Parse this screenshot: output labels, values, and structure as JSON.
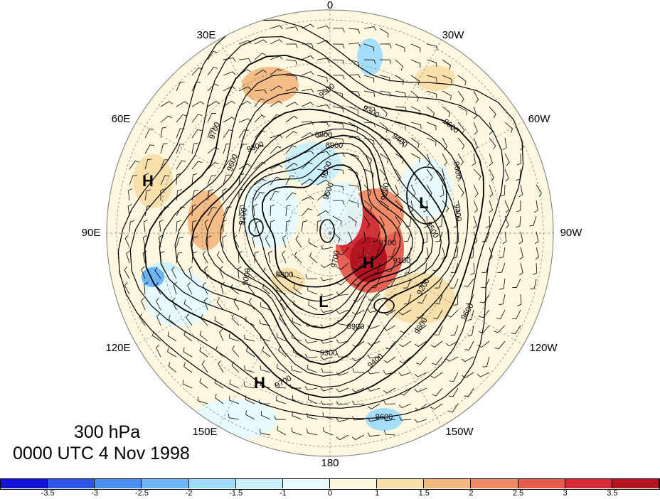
{
  "caption": {
    "level": "300 hPa",
    "time": "0000 UTC 4 Nov 1998"
  },
  "longitude_labels": [
    "0",
    "30W",
    "60W",
    "90W",
    "120W",
    "150W",
    "180",
    "150E",
    "120E",
    "90E",
    "60E",
    "30E"
  ],
  "centers": [
    {
      "label": "H",
      "lon": "70E"
    },
    {
      "label": "H",
      "lon": "160W"
    },
    {
      "label": "H",
      "lon": "165E"
    },
    {
      "label": "L",
      "lon": "50W"
    },
    {
      "label": "L",
      "lon": "150E"
    }
  ],
  "contour_labels": [
    "9500",
    "9300",
    "9400",
    "9600",
    "9700",
    "9600",
    "9200",
    "9300",
    "8800",
    "8900",
    "9000",
    "9500",
    "9600",
    "9500",
    "9400",
    "9200",
    "9700",
    "9100",
    "9000",
    "8800",
    "9200",
    "9100",
    "9300",
    "8900",
    "9400",
    "9500",
    "9600",
    "9700",
    "9600"
  ],
  "colorbar": {
    "tick_labels": [
      "-3.5",
      "-3",
      "-2.5",
      "-2",
      "-1.5",
      "-1",
      "0",
      "1",
      "1.5",
      "2",
      "2.5",
      "3",
      "3.5"
    ],
    "colors": [
      "#1414d6",
      "#2c54e8",
      "#4a8ef0",
      "#6db4f5",
      "#9fdcfa",
      "#c9f0fb",
      "#e6fbfd",
      "#fdf7e0",
      "#f8deaa",
      "#f3b882",
      "#ee8a66",
      "#e65a4c",
      "#d32a35",
      "#b3141f"
    ]
  }
}
